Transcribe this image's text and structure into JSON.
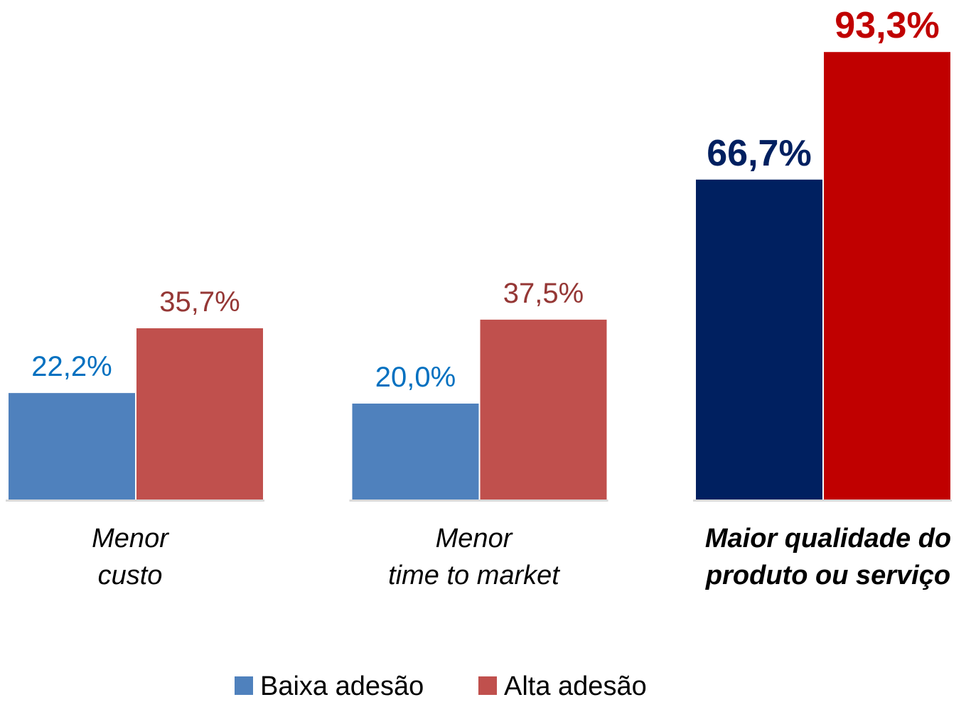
{
  "chart_data": {
    "type": "bar",
    "categories": [
      [
        "Menor",
        "custo"
      ],
      [
        "Menor",
        "time to market"
      ],
      [
        "Maior qualidade do",
        "produto ou serviço"
      ]
    ],
    "highlight_category": 2,
    "ylim": [
      0,
      100
    ],
    "series": [
      {
        "name": "Baixa adesão",
        "color": "#4f81bd",
        "point_colors": [
          "#4f81bd",
          "#4f81bd",
          "#002060"
        ],
        "label_colors": [
          "#0070c0",
          "#0070c0",
          "#002060"
        ],
        "values": [
          22.2,
          20.0,
          66.7
        ],
        "value_labels": [
          "22,2%",
          "20,0%",
          "66,7%"
        ]
      },
      {
        "name": "Alta adesão",
        "color": "#c0504d",
        "point_colors": [
          "#c0504d",
          "#c0504d",
          "#c00000"
        ],
        "label_colors": [
          "#953735",
          "#953735",
          "#c00000"
        ],
        "values": [
          35.7,
          37.5,
          93.3
        ],
        "value_labels": [
          "35,7%",
          "37,5%",
          "93,3%"
        ]
      }
    ],
    "legend": "bottom"
  }
}
